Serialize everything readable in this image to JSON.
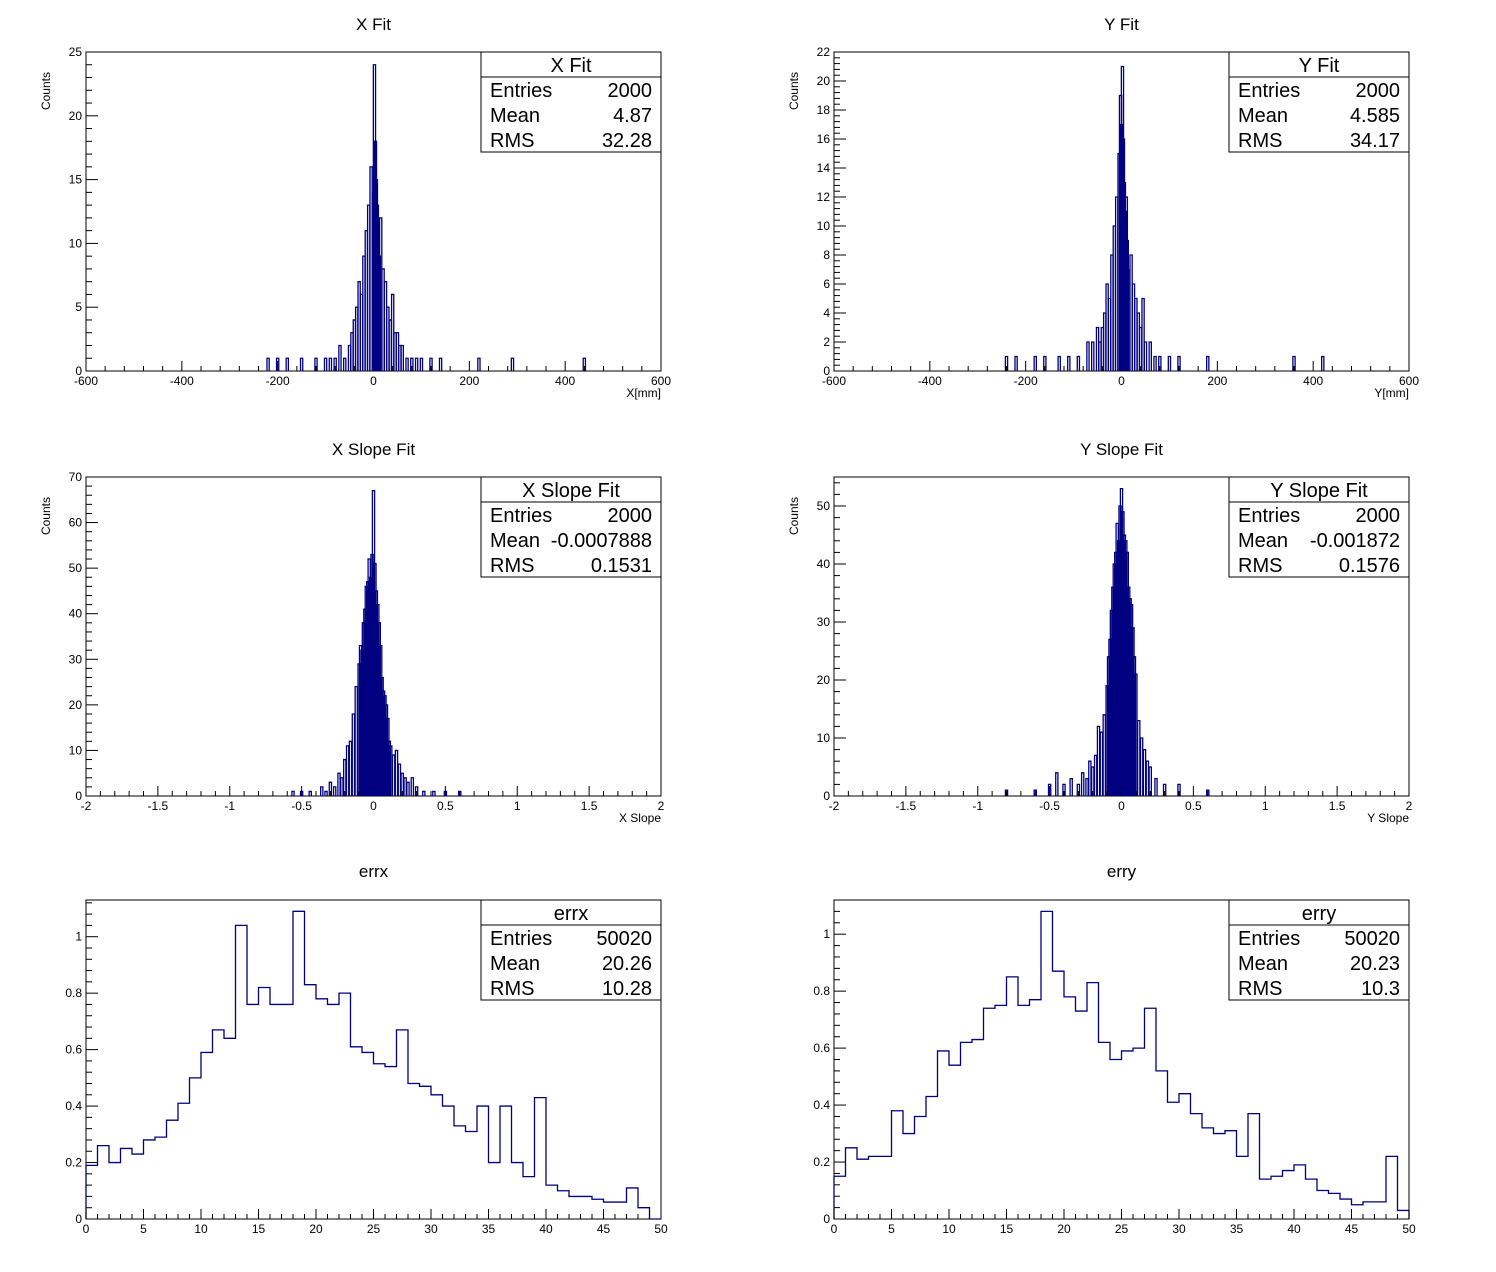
{
  "chart_data": [
    {
      "type": "bar",
      "style": "histogram",
      "title": "X Fit",
      "xlabel": "X[mm]",
      "ylabel": "Counts",
      "xlim": [
        -600,
        600
      ],
      "ylim": [
        0,
        25
      ],
      "xticks": [
        -600,
        -400,
        -200,
        0,
        200,
        400,
        600
      ],
      "yticks": [
        0,
        5,
        10,
        15,
        20,
        25
      ],
      "color": "#000080",
      "stats": {
        "name": "X Fit",
        "rows": [
          [
            "Entries",
            "2000"
          ],
          [
            "Mean",
            "4.87"
          ],
          [
            "RMS",
            "32.28"
          ]
        ]
      },
      "series": [
        {
          "x": [
            -220,
            -200,
            -180,
            -150,
            -120,
            -100,
            -90,
            -80,
            -70,
            -60,
            -50,
            -45,
            -40,
            -35,
            -30,
            -25,
            -20,
            -15,
            -10,
            -5,
            0,
            2,
            4,
            6,
            8,
            10,
            12,
            15,
            20,
            25,
            30,
            35,
            40,
            45,
            50,
            55,
            60,
            70,
            80,
            90,
            100,
            120,
            140,
            220,
            290,
            440
          ],
          "values": [
            1,
            1,
            1,
            1,
            1,
            1,
            1,
            1,
            2,
            1,
            2,
            3,
            4,
            5,
            7,
            6,
            9,
            11,
            13,
            16,
            14,
            24,
            18,
            15,
            13,
            10,
            9,
            12,
            8,
            7,
            5,
            4,
            6,
            3,
            3,
            2,
            2,
            1,
            1,
            1,
            1,
            1,
            1,
            1,
            1,
            1
          ]
        }
      ]
    },
    {
      "type": "bar",
      "style": "histogram",
      "title": "Y Fit",
      "xlabel": "Y[mm]",
      "ylabel": "Counts",
      "xlim": [
        -600,
        600
      ],
      "ylim": [
        0,
        22
      ],
      "xticks": [
        -600,
        -400,
        -200,
        0,
        200,
        400,
        600
      ],
      "yticks": [
        0,
        2,
        4,
        6,
        8,
        10,
        12,
        14,
        16,
        18,
        20,
        22
      ],
      "color": "#000080",
      "stats": {
        "name": "Y Fit",
        "rows": [
          [
            "Entries",
            "2000"
          ],
          [
            "Mean",
            "4.585"
          ],
          [
            "RMS",
            "34.17"
          ]
        ]
      },
      "series": [
        {
          "x": [
            -240,
            -220,
            -180,
            -160,
            -130,
            -110,
            -90,
            -70,
            -60,
            -50,
            -45,
            -40,
            -35,
            -30,
            -25,
            -20,
            -15,
            -10,
            -5,
            -2,
            0,
            2,
            4,
            6,
            8,
            10,
            12,
            15,
            20,
            25,
            30,
            35,
            40,
            45,
            50,
            60,
            70,
            80,
            100,
            120,
            180,
            360,
            420
          ],
          "values": [
            1,
            1,
            1,
            1,
            1,
            1,
            1,
            2,
            2,
            3,
            2,
            3,
            4,
            6,
            5,
            8,
            10,
            12,
            15,
            19,
            17,
            21,
            16,
            13,
            11,
            12,
            9,
            7,
            8,
            6,
            5,
            4,
            3,
            5,
            2,
            2,
            1,
            1,
            1,
            1,
            1,
            1,
            1
          ]
        }
      ]
    },
    {
      "type": "bar",
      "style": "histogram",
      "title": "X Slope Fit",
      "xlabel": "X Slope",
      "ylabel": "Counts",
      "xlim": [
        -2,
        2
      ],
      "ylim": [
        0,
        70
      ],
      "xticks": [
        -2,
        -1.5,
        -1,
        -0.5,
        0,
        0.5,
        1,
        1.5,
        2
      ],
      "yticks": [
        0,
        10,
        20,
        30,
        40,
        50,
        60,
        70
      ],
      "color": "#000080",
      "stats": {
        "name": "X Slope Fit",
        "rows": [
          [
            "Entries",
            "2000"
          ],
          [
            "Mean",
            "-0.0007888"
          ],
          [
            "RMS",
            "0.1531"
          ]
        ]
      },
      "series": [
        {
          "x": [
            -0.56,
            -0.5,
            -0.44,
            -0.36,
            -0.33,
            -0.3,
            -0.27,
            -0.24,
            -0.22,
            -0.2,
            -0.18,
            -0.16,
            -0.14,
            -0.12,
            -0.1,
            -0.09,
            -0.08,
            -0.07,
            -0.06,
            -0.05,
            -0.04,
            -0.03,
            -0.02,
            -0.01,
            0.0,
            0.01,
            0.02,
            0.03,
            0.04,
            0.05,
            0.06,
            0.07,
            0.08,
            0.09,
            0.1,
            0.11,
            0.12,
            0.14,
            0.16,
            0.18,
            0.2,
            0.22,
            0.24,
            0.27,
            0.3,
            0.35,
            0.42,
            0.5,
            0.6
          ],
          "values": [
            1,
            1,
            1,
            2,
            1,
            3,
            2,
            5,
            4,
            8,
            11,
            12,
            18,
            24,
            29,
            33,
            32,
            38,
            41,
            46,
            47,
            52,
            48,
            53,
            67,
            51,
            45,
            42,
            38,
            33,
            26,
            23,
            22,
            20,
            17,
            12,
            11,
            9,
            10,
            7,
            5,
            4,
            3,
            4,
            2,
            1,
            1,
            1,
            1
          ]
        }
      ]
    },
    {
      "type": "bar",
      "style": "histogram",
      "title": "Y Slope Fit",
      "xlabel": "Y Slope",
      "ylabel": "Counts",
      "xlim": [
        -2,
        2
      ],
      "ylim": [
        0,
        55
      ],
      "xticks": [
        -2,
        -1.5,
        -1,
        -0.5,
        0,
        0.5,
        1,
        1.5,
        2
      ],
      "yticks": [
        0,
        10,
        20,
        30,
        40,
        50
      ],
      "color": "#000080",
      "stats": {
        "name": "Y Slope Fit",
        "rows": [
          [
            "Entries",
            "2000"
          ],
          [
            "Mean",
            "-0.001872"
          ],
          [
            "RMS",
            "0.1576"
          ]
        ]
      },
      "series": [
        {
          "x": [
            -0.8,
            -0.6,
            -0.5,
            -0.45,
            -0.4,
            -0.35,
            -0.3,
            -0.27,
            -0.24,
            -0.22,
            -0.2,
            -0.18,
            -0.16,
            -0.14,
            -0.12,
            -0.1,
            -0.09,
            -0.08,
            -0.07,
            -0.06,
            -0.05,
            -0.04,
            -0.03,
            -0.02,
            -0.01,
            0.0,
            0.01,
            0.02,
            0.03,
            0.04,
            0.05,
            0.06,
            0.07,
            0.08,
            0.09,
            0.1,
            0.12,
            0.14,
            0.16,
            0.18,
            0.2,
            0.24,
            0.3,
            0.4,
            0.6
          ],
          "values": [
            1,
            1,
            2,
            4,
            2,
            3,
            2,
            4,
            3,
            6,
            5,
            7,
            12,
            11,
            14,
            19,
            24,
            27,
            32,
            36,
            40,
            42,
            47,
            44,
            50,
            53,
            49,
            45,
            44,
            42,
            36,
            34,
            33,
            29,
            24,
            21,
            13,
            10,
            8,
            6,
            5,
            3,
            2,
            2,
            1
          ]
        }
      ]
    },
    {
      "type": "bar",
      "style": "histogram",
      "title": "errx",
      "xlabel": "",
      "ylabel": "",
      "xlim": [
        0,
        50
      ],
      "ylim": [
        0,
        1.13
      ],
      "xticks": [
        0,
        5,
        10,
        15,
        20,
        25,
        30,
        35,
        40,
        45,
        50
      ],
      "yticks": [
        0,
        0.2,
        0.4,
        0.6,
        0.8,
        1
      ],
      "color": "#000080",
      "stats": {
        "name": "errx",
        "rows": [
          [
            "Entries",
            "50020"
          ],
          [
            "Mean",
            "20.26"
          ],
          [
            "RMS",
            "10.28"
          ]
        ]
      },
      "series": [
        {
          "bin_edges_start": 0,
          "bin_width": 1,
          "values": [
            0.19,
            0.26,
            0.2,
            0.25,
            0.23,
            0.28,
            0.29,
            0.35,
            0.41,
            0.5,
            0.59,
            0.67,
            0.64,
            1.04,
            0.76,
            0.82,
            0.76,
            0.76,
            1.09,
            0.83,
            0.78,
            0.76,
            0.8,
            0.61,
            0.59,
            0.55,
            0.54,
            0.67,
            0.48,
            0.47,
            0.44,
            0.4,
            0.33,
            0.31,
            0.4,
            0.2,
            0.4,
            0.2,
            0.15,
            0.43,
            0.12,
            0.1,
            0.08,
            0.08,
            0.07,
            0.06,
            0.06,
            0.11,
            0.04,
            0.0
          ]
        }
      ]
    },
    {
      "type": "bar",
      "style": "histogram",
      "title": "erry",
      "xlabel": "",
      "ylabel": "",
      "xlim": [
        0,
        50
      ],
      "ylim": [
        0,
        1.12
      ],
      "xticks": [
        0,
        5,
        10,
        15,
        20,
        25,
        30,
        35,
        40,
        45,
        50
      ],
      "yticks": [
        0,
        0.2,
        0.4,
        0.6,
        0.8,
        1
      ],
      "color": "#000080",
      "stats": {
        "name": "erry",
        "rows": [
          [
            "Entries",
            "50020"
          ],
          [
            "Mean",
            "20.23"
          ],
          [
            "RMS",
            "10.3"
          ]
        ]
      },
      "series": [
        {
          "bin_edges_start": 0,
          "bin_width": 1,
          "values": [
            0.15,
            0.25,
            0.21,
            0.22,
            0.22,
            0.38,
            0.3,
            0.36,
            0.43,
            0.59,
            0.54,
            0.62,
            0.63,
            0.74,
            0.75,
            0.85,
            0.75,
            0.77,
            1.08,
            0.87,
            0.78,
            0.73,
            0.83,
            0.62,
            0.56,
            0.59,
            0.6,
            0.74,
            0.52,
            0.41,
            0.44,
            0.37,
            0.32,
            0.3,
            0.31,
            0.22,
            0.37,
            0.14,
            0.15,
            0.17,
            0.19,
            0.14,
            0.1,
            0.09,
            0.07,
            0.05,
            0.06,
            0.06,
            0.22,
            0.03
          ]
        }
      ]
    }
  ]
}
